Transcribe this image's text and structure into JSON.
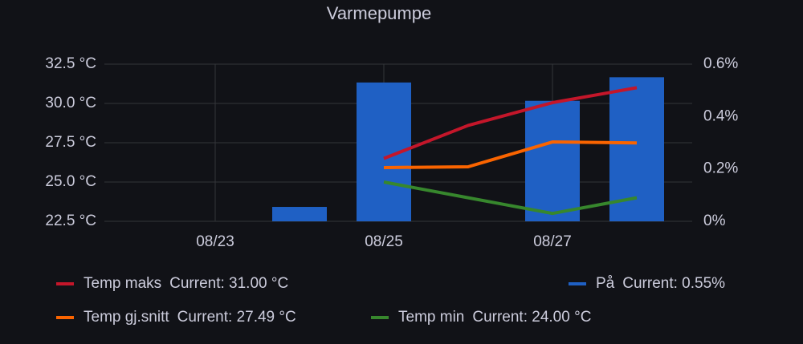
{
  "chart_data": {
    "type": "bar-line",
    "title": "Varmepumpe",
    "categories": [
      null,
      "08/23",
      null,
      "08/25",
      null,
      "08/27",
      null
    ],
    "ylim": [
      22.5,
      32.5
    ],
    "yticks": [
      {
        "value": 22.5,
        "label": "22.5 °C"
      },
      {
        "value": 25,
        "label": "25.0 °C"
      },
      {
        "value": 27.5,
        "label": "27.5 °C"
      },
      {
        "value": 30,
        "label": "30.0 °C"
      },
      {
        "value": 32.5,
        "label": "32.5 °C"
      }
    ],
    "y2lim": [
      0,
      0.6
    ],
    "y2ticks": [
      {
        "value": 0,
        "label": "0%"
      },
      {
        "value": 0.2,
        "label": "0.2%"
      },
      {
        "value": 0.4,
        "label": "0.4%"
      },
      {
        "value": 0.6,
        "label": "0.6%"
      }
    ],
    "grid": true,
    "series": [
      {
        "name": "Temp maks",
        "color": "#c4162a",
        "kind": "line",
        "legend_value": "Current: 31.00 °C",
        "values": [
          null,
          null,
          null,
          26.5,
          28.6,
          30.05,
          31.0
        ]
      },
      {
        "name": "På",
        "color": "#1f60c4",
        "kind": "bar",
        "axis": "y2",
        "legend_value": "Current: 0.55%",
        "values": [
          null,
          null,
          0.055,
          0.53,
          null,
          0.46,
          0.55
        ]
      },
      {
        "name": "Temp gj.snitt",
        "color": "#fa6400",
        "kind": "line",
        "legend_value": "Current: 27.49 °C",
        "values": [
          null,
          null,
          null,
          25.92,
          25.97,
          27.55,
          27.49
        ]
      },
      {
        "name": "Temp min",
        "color": "#37872d",
        "kind": "line",
        "legend_value": "Current: 24.00 °C",
        "values": [
          null,
          null,
          null,
          25.0,
          24.0,
          23.0,
          24.0
        ]
      }
    ]
  }
}
